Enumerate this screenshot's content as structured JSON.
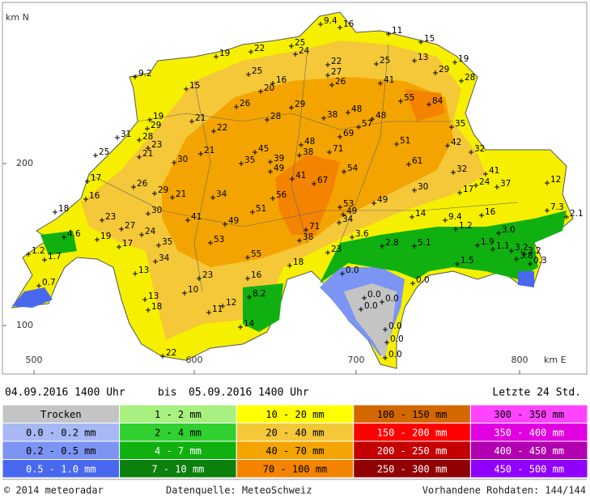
{
  "map": {
    "axis_labels": {
      "north": "km N",
      "east": "km E"
    },
    "y_ticks": [
      "200",
      "100"
    ],
    "x_ticks": [
      "500",
      "600",
      "700",
      "800"
    ],
    "stations": [
      "16",
      "9.4",
      "11",
      "15",
      "22",
      "25",
      "24",
      "19",
      "22",
      "25",
      "13",
      "19",
      "9.2",
      "25",
      "16",
      "20",
      "27",
      "26",
      "41",
      "29",
      "28",
      "15",
      "26",
      "29",
      "55",
      "84",
      "38",
      "48",
      "48",
      "57",
      "19",
      "29",
      "21",
      "22",
      "28",
      "69",
      "35",
      "31",
      "28",
      "23",
      "21",
      "25",
      "30",
      "21",
      "45",
      "35",
      "39",
      "49",
      "48",
      "38",
      "71",
      "51",
      "42",
      "32",
      "54",
      "61",
      "41",
      "67",
      "32",
      "41",
      "17",
      "26",
      "16",
      "29",
      "21",
      "34",
      "56",
      "30",
      "17",
      "24",
      "37",
      "12",
      "18",
      "30",
      "51",
      "53",
      "49",
      "49",
      "34",
      "23",
      "41",
      "49",
      "14",
      "9.4",
      "16",
      "7.3",
      "2.1",
      "27",
      "24",
      "71",
      "3.6",
      "1.2",
      "3.0",
      "4.6",
      "19",
      "17",
      "35",
      "53",
      "38",
      "2.8",
      "5.1",
      "1.9",
      "1.1",
      "3.2",
      "3.2",
      "3.8",
      "1.2",
      "1.7",
      "34",
      "55",
      "23",
      "1.5",
      "0.3",
      "18",
      "13",
      "0.0",
      "23",
      "16",
      "0.7",
      "0.0",
      "10",
      "8.2",
      "13",
      "0.0",
      "0.0",
      "0.0",
      "18",
      "11",
      "12",
      "14",
      "0.0",
      "0.0",
      "22",
      "0.0"
    ]
  },
  "period": {
    "from": "04.09.2016  1400 Uhr",
    "separator": "bis",
    "to": "05.09.2016  1400 Uhr",
    "window": "Letzte 24 Std."
  },
  "legend": [
    {
      "label": "Trocken",
      "color": "#c4c4c4"
    },
    {
      "label": "0.0 - 0.2 mm",
      "color": "#a8b8f4"
    },
    {
      "label": "0.2 - 0.5 mm",
      "color": "#7c94f4"
    },
    {
      "label": "0.5 - 1.0 mm",
      "color": "#4868f0"
    },
    {
      "label": "1 - 2 mm",
      "color": "#a8f080"
    },
    {
      "label": "2 - 4 mm",
      "color": "#30d030"
    },
    {
      "label": "4 - 7 mm",
      "color": "#10b010"
    },
    {
      "label": "7 - 10 mm",
      "color": "#0c800c"
    },
    {
      "label": "10 - 20 mm",
      "color": "#ffff00"
    },
    {
      "label": "20 - 40 mm",
      "color": "#f4c838"
    },
    {
      "label": "40 - 70 mm",
      "color": "#f4a400"
    },
    {
      "label": "70 - 100 mm",
      "color": "#f48400"
    },
    {
      "label": "100 - 150 mm",
      "color": "#d46800"
    },
    {
      "label": "150 - 200 mm",
      "color": "#ff0000"
    },
    {
      "label": "200 - 250 mm",
      "color": "#c40000"
    },
    {
      "label": "250 - 300 mm",
      "color": "#900000"
    },
    {
      "label": "300 - 350 mm",
      "color": "#ff44ff"
    },
    {
      "label": "350 - 400 mm",
      "color": "#e000e0"
    },
    {
      "label": "400 - 450 mm",
      "color": "#b000b0"
    },
    {
      "label": "450 - 500 mm",
      "color": "#9000ff"
    }
  ],
  "footer": {
    "copyright": "© 2014 meteoradar",
    "source": "Datenquelle: MeteoSchweiz",
    "raw_data": "Vorhandene Rohdaten: 144/144"
  }
}
